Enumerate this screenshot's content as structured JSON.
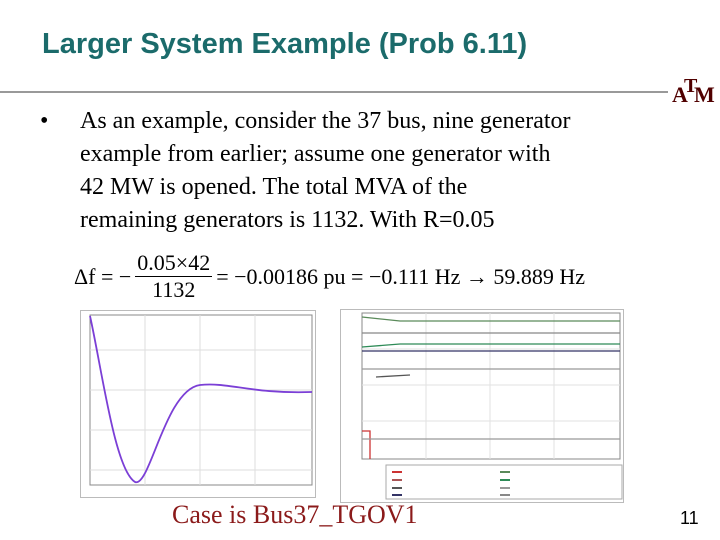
{
  "header": {
    "title": "Larger System Example (Prob 6.11)"
  },
  "logo": {
    "left": "A",
    "center": "T",
    "right": "M"
  },
  "bullet": {
    "lines": [
      "As an example, consider the 37 bus, nine generator",
      "example from earlier;  assume one generator with",
      "42 MW is opened.  The total MVA of the",
      "remaining generators is 1132.  With R=0.05"
    ]
  },
  "equation": {
    "lhs": "Δf = −",
    "numerator": "0.05×42",
    "denominator": "1132",
    "rhs": "= −0.00186 pu = −0.111 Hz → 59.889 Hz"
  },
  "caption": "Case is Bus37_TGOV1",
  "page_number": "11"
}
